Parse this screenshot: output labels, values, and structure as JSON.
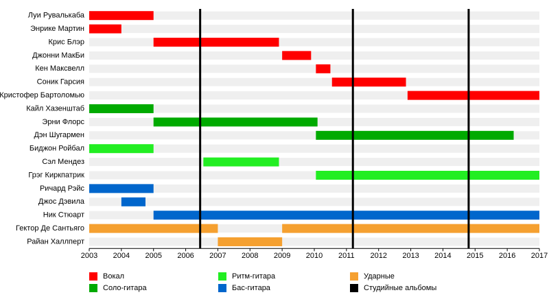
{
  "chart_data": {
    "type": "timeline",
    "categories": [
      "Луи Рувалькаба",
      "Энрике Мартин",
      "Крис Блэр",
      "Джонни МакБи",
      "Кен Максвелл",
      "Соник Гарсия",
      "Кристофер Бартоломью",
      "Кайл Хазенштаб",
      "Эрни Флорс",
      "Дэн Шугармен",
      "Биджон Ройбал",
      "Сэл Мендез",
      "Грэг Киркпатрик",
      "Ричард Рэйс",
      "Джос Дэвила",
      "Ник Стюарт",
      "Гектор Де Сантьяго",
      "Райан Халлперт"
    ],
    "series": [
      {
        "name": "Вокал",
        "color": "#ff0000",
        "values": [
          [
            [
              2003,
              2005
            ]
          ],
          [
            [
              2003,
              2004
            ]
          ],
          [
            [
              2005,
              2008.9
            ]
          ],
          [
            [
              2009,
              2009.9
            ]
          ],
          [
            [
              2010.05,
              2010.5
            ]
          ],
          [
            [
              2010.55,
              2012.85
            ]
          ],
          [
            [
              2012.9,
              2017
            ]
          ],
          null,
          null,
          null,
          null,
          null,
          null,
          null,
          null,
          null,
          null,
          null
        ]
      },
      {
        "name": "Соло-гитара",
        "color": "#00aa00",
        "values": [
          null,
          null,
          null,
          null,
          null,
          null,
          null,
          [
            [
              2003,
              2005
            ]
          ],
          [
            [
              2005,
              2010.1
            ]
          ],
          [
            [
              2010.05,
              2016.2
            ]
          ],
          null,
          null,
          null,
          null,
          null,
          null,
          null,
          null
        ]
      },
      {
        "name": "Ритм-гитара",
        "color": "#22ee22",
        "values": [
          null,
          null,
          null,
          null,
          null,
          null,
          null,
          null,
          null,
          null,
          [
            [
              2003,
              2005
            ]
          ],
          [
            [
              2006.55,
              2008.9
            ]
          ],
          [
            [
              2010.05,
              2017
            ]
          ],
          null,
          null,
          null,
          null,
          null
        ]
      },
      {
        "name": "Бас-гитара",
        "color": "#0066cc",
        "values": [
          null,
          null,
          null,
          null,
          null,
          null,
          null,
          null,
          null,
          null,
          null,
          null,
          null,
          [
            [
              2003,
              2005
            ]
          ],
          [
            [
              2004,
              2004.75
            ]
          ],
          [
            [
              2005,
              2017
            ]
          ],
          null,
          null
        ]
      },
      {
        "name": "Ударные",
        "color": "#f5a030",
        "values": [
          null,
          null,
          null,
          null,
          null,
          null,
          null,
          null,
          null,
          null,
          null,
          null,
          null,
          null,
          null,
          null,
          [
            [
              2003,
              2007
            ],
            [
              2009,
              2017
            ]
          ],
          [
            [
              2007,
              2009
            ]
          ]
        ]
      }
    ],
    "album_lines": {
      "name": "Студийные альбомы",
      "color": "#000000",
      "values": [
        2006.45,
        2011.2,
        2014.8
      ]
    },
    "xlim": [
      2003,
      2017
    ],
    "xticks": [
      2003,
      2004,
      2005,
      2006,
      2007,
      2008,
      2009,
      2010,
      2011,
      2012,
      2013,
      2014,
      2015,
      2016,
      2017
    ]
  }
}
